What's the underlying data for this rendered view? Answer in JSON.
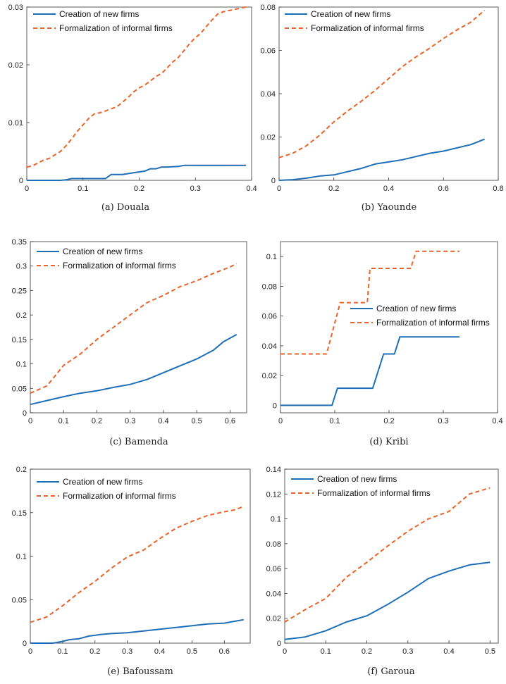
{
  "colors": {
    "new_firms": "#1f6fb8",
    "formalization": "#e8642a",
    "axis": "#333333"
  },
  "chart_data": [
    {
      "type": "line",
      "caption": "(a) Douala",
      "legend_placement": "top-left",
      "xlim": [
        0,
        0.4
      ],
      "ylim": [
        0,
        0.03
      ],
      "xticks": [
        0,
        0.1,
        0.2,
        0.3,
        0.4
      ],
      "xtick_labels": [
        "0",
        "0.1",
        "0.2",
        "0.3",
        "0.4"
      ],
      "yticks": [
        0,
        0.01,
        0.02,
        0.03
      ],
      "ytick_labels": [
        "0",
        "0.01",
        "0.02",
        "0.03"
      ],
      "series": [
        {
          "name": "Creation of new firms",
          "style": "solid",
          "x": [
            0,
            0.02,
            0.04,
            0.06,
            0.07,
            0.08,
            0.1,
            0.12,
            0.14,
            0.15,
            0.17,
            0.19,
            0.21,
            0.22,
            0.23,
            0.24,
            0.25,
            0.27,
            0.28,
            0.3,
            0.32,
            0.34,
            0.36,
            0.39
          ],
          "y": [
            0,
            0,
            0,
            0,
            0.0001,
            0.0003,
            0.0003,
            0.0003,
            0.0003,
            0.001,
            0.001,
            0.0013,
            0.0016,
            0.002,
            0.002,
            0.0023,
            0.0023,
            0.0024,
            0.0026,
            0.0026,
            0.0026,
            0.0026,
            0.0026,
            0.0026
          ]
        },
        {
          "name": "Formalization of informal firms",
          "style": "dashed",
          "x": [
            0,
            0.01,
            0.02,
            0.03,
            0.04,
            0.05,
            0.06,
            0.07,
            0.08,
            0.09,
            0.1,
            0.11,
            0.12,
            0.13,
            0.14,
            0.15,
            0.16,
            0.17,
            0.18,
            0.19,
            0.2,
            0.21,
            0.22,
            0.23,
            0.24,
            0.25,
            0.26,
            0.27,
            0.28,
            0.29,
            0.3,
            0.31,
            0.32,
            0.33,
            0.34,
            0.35,
            0.36,
            0.37,
            0.38,
            0.39
          ],
          "y": [
            0.0023,
            0.0025,
            0.003,
            0.0035,
            0.0038,
            0.0044,
            0.005,
            0.006,
            0.0072,
            0.0085,
            0.0096,
            0.0107,
            0.0115,
            0.0117,
            0.012,
            0.0124,
            0.0127,
            0.0135,
            0.0143,
            0.0153,
            0.016,
            0.0165,
            0.0172,
            0.018,
            0.0185,
            0.0195,
            0.0205,
            0.0213,
            0.0225,
            0.0237,
            0.0247,
            0.0255,
            0.0267,
            0.0278,
            0.0288,
            0.0292,
            0.0294,
            0.0296,
            0.0298,
            0.03
          ]
        }
      ]
    },
    {
      "type": "line",
      "caption": "(b) Yaounde",
      "legend_placement": "top-left",
      "xlim": [
        0,
        0.8
      ],
      "ylim": [
        0,
        0.08
      ],
      "xticks": [
        0,
        0.2,
        0.4,
        0.6,
        0.8
      ],
      "xtick_labels": [
        "0",
        "0.2",
        "0.4",
        "0.6",
        "0.8"
      ],
      "yticks": [
        0,
        0.02,
        0.04,
        0.06,
        0.08
      ],
      "ytick_labels": [
        "0",
        "0.02",
        "0.04",
        "0.06",
        "0.08"
      ],
      "series": [
        {
          "name": "Creation of new firms",
          "style": "solid",
          "x": [
            0,
            0.05,
            0.1,
            0.15,
            0.2,
            0.25,
            0.3,
            0.35,
            0.4,
            0.45,
            0.5,
            0.55,
            0.6,
            0.65,
            0.7,
            0.75
          ],
          "y": [
            0,
            0.0003,
            0.001,
            0.002,
            0.0025,
            0.004,
            0.0055,
            0.0075,
            0.0085,
            0.0095,
            0.011,
            0.0125,
            0.0135,
            0.015,
            0.0165,
            0.019
          ]
        },
        {
          "name": "Formalization of informal firms",
          "style": "dashed",
          "x": [
            0,
            0.05,
            0.1,
            0.15,
            0.2,
            0.25,
            0.3,
            0.35,
            0.4,
            0.45,
            0.5,
            0.55,
            0.6,
            0.65,
            0.7,
            0.75
          ],
          "y": [
            0.0105,
            0.0125,
            0.016,
            0.021,
            0.027,
            0.032,
            0.0365,
            0.0415,
            0.047,
            0.0525,
            0.057,
            0.061,
            0.0655,
            0.0695,
            0.073,
            0.0785
          ]
        }
      ]
    },
    {
      "type": "line",
      "caption": "(c) Bamenda",
      "legend_placement": "top-left",
      "xlim": [
        0,
        0.65
      ],
      "ylim": [
        0,
        0.35
      ],
      "xticks": [
        0,
        0.1,
        0.2,
        0.3,
        0.4,
        0.5,
        0.6
      ],
      "xtick_labels": [
        "0",
        "0.1",
        "0.2",
        "0.3",
        "0.4",
        "0.5",
        "0.6"
      ],
      "yticks": [
        0,
        0.05,
        0.1,
        0.15,
        0.2,
        0.25,
        0.3,
        0.35
      ],
      "ytick_labels": [
        "0",
        "0.05",
        "0.1",
        "0.15",
        "0.2",
        "0.25",
        "0.3",
        "0.35"
      ],
      "series": [
        {
          "name": "Creation of new firms",
          "style": "solid",
          "x": [
            0,
            0.05,
            0.1,
            0.15,
            0.2,
            0.25,
            0.3,
            0.35,
            0.4,
            0.45,
            0.5,
            0.55,
            0.58,
            0.62
          ],
          "y": [
            0.017,
            0.025,
            0.033,
            0.04,
            0.045,
            0.052,
            0.058,
            0.068,
            0.082,
            0.096,
            0.11,
            0.128,
            0.145,
            0.16
          ]
        },
        {
          "name": "Formalization of informal firms",
          "style": "dashed",
          "x": [
            0,
            0.05,
            0.1,
            0.15,
            0.2,
            0.25,
            0.3,
            0.35,
            0.4,
            0.45,
            0.5,
            0.55,
            0.6,
            0.62
          ],
          "y": [
            0.04,
            0.055,
            0.097,
            0.12,
            0.15,
            0.175,
            0.2,
            0.225,
            0.24,
            0.258,
            0.27,
            0.285,
            0.298,
            0.305
          ]
        }
      ]
    },
    {
      "type": "line",
      "caption": "(d) Kribi",
      "legend_placement": "center-right",
      "xlim": [
        0,
        0.4
      ],
      "ylim": [
        -0.005,
        0.11
      ],
      "xticks": [
        0,
        0.1,
        0.2,
        0.3,
        0.4
      ],
      "xtick_labels": [
        "0",
        "0.1",
        "0.2",
        "0.3",
        "0.4"
      ],
      "yticks": [
        0,
        0.02,
        0.04,
        0.06,
        0.08,
        0.1
      ],
      "ytick_labels": [
        "0",
        "0.02",
        "0.04",
        "0.06",
        "0.08",
        "0.1"
      ],
      "series": [
        {
          "name": "Creation of new firms",
          "style": "solid",
          "x": [
            0,
            0.095,
            0.105,
            0.17,
            0.19,
            0.195,
            0.21,
            0.22,
            0.33
          ],
          "y": [
            0,
            0,
            0.0115,
            0.0115,
            0.0345,
            0.0345,
            0.0345,
            0.046,
            0.046
          ]
        },
        {
          "name": "Formalization of informal firms",
          "style": "dashed",
          "x": [
            0,
            0.085,
            0.11,
            0.13,
            0.135,
            0.16,
            0.165,
            0.24,
            0.25,
            0.33
          ],
          "y": [
            0.0345,
            0.0345,
            0.069,
            0.069,
            0.069,
            0.069,
            0.092,
            0.092,
            0.1035,
            0.1035
          ]
        }
      ]
    },
    {
      "type": "line",
      "caption": "(e) Bafoussam",
      "legend_placement": "top-left",
      "xlim": [
        0,
        0.68
      ],
      "ylim": [
        0,
        0.2
      ],
      "xticks": [
        0,
        0.1,
        0.2,
        0.3,
        0.4,
        0.5,
        0.6
      ],
      "xtick_labels": [
        "0",
        "0.1",
        "0.2",
        "0.3",
        "0.4",
        "0.5",
        "0.6"
      ],
      "yticks": [
        0,
        0.05,
        0.1,
        0.15,
        0.2
      ],
      "ytick_labels": [
        "0",
        "0.05",
        "0.1",
        "0.15",
        "0.2"
      ],
      "series": [
        {
          "name": "Creation of new firms",
          "style": "solid",
          "x": [
            0,
            0.07,
            0.1,
            0.12,
            0.15,
            0.18,
            0.22,
            0.25,
            0.3,
            0.35,
            0.4,
            0.45,
            0.5,
            0.55,
            0.6,
            0.63,
            0.66
          ],
          "y": [
            0,
            0,
            0.002,
            0.004,
            0.005,
            0.008,
            0.01,
            0.011,
            0.012,
            0.014,
            0.016,
            0.018,
            0.02,
            0.022,
            0.023,
            0.025,
            0.027
          ]
        },
        {
          "name": "Formalization of informal firms",
          "style": "dashed",
          "x": [
            0,
            0.05,
            0.1,
            0.15,
            0.2,
            0.25,
            0.3,
            0.35,
            0.4,
            0.45,
            0.5,
            0.55,
            0.6,
            0.63,
            0.66
          ],
          "y": [
            0.024,
            0.03,
            0.043,
            0.058,
            0.071,
            0.086,
            0.099,
            0.107,
            0.12,
            0.132,
            0.14,
            0.147,
            0.151,
            0.153,
            0.157
          ]
        }
      ]
    },
    {
      "type": "line",
      "caption": "(f) Garoua",
      "legend_placement": "top-left",
      "xlim": [
        0,
        0.52
      ],
      "ylim": [
        0,
        0.14
      ],
      "xticks": [
        0,
        0.1,
        0.2,
        0.3,
        0.4,
        0.5
      ],
      "xtick_labels": [
        "0",
        "0.1",
        "0.2",
        "0.3",
        "0.4",
        "0.5"
      ],
      "yticks": [
        0,
        0.02,
        0.04,
        0.06,
        0.08,
        0.1,
        0.12,
        0.14
      ],
      "ytick_labels": [
        "0",
        "0.02",
        "0.04",
        "0.06",
        "0.08",
        "0.1",
        "0.12",
        "0.14"
      ],
      "series": [
        {
          "name": "Creation of new firms",
          "style": "solid",
          "x": [
            0,
            0.05,
            0.1,
            0.15,
            0.2,
            0.25,
            0.3,
            0.35,
            0.4,
            0.45,
            0.5
          ],
          "y": [
            0.003,
            0.005,
            0.01,
            0.017,
            0.022,
            0.031,
            0.041,
            0.052,
            0.058,
            0.063,
            0.065
          ]
        },
        {
          "name": "Formalization of informal firms",
          "style": "dashed",
          "x": [
            0,
            0.05,
            0.1,
            0.15,
            0.2,
            0.25,
            0.3,
            0.35,
            0.4,
            0.45,
            0.5
          ],
          "y": [
            0.017,
            0.027,
            0.036,
            0.053,
            0.065,
            0.078,
            0.09,
            0.1,
            0.106,
            0.12,
            0.125
          ]
        }
      ]
    }
  ]
}
